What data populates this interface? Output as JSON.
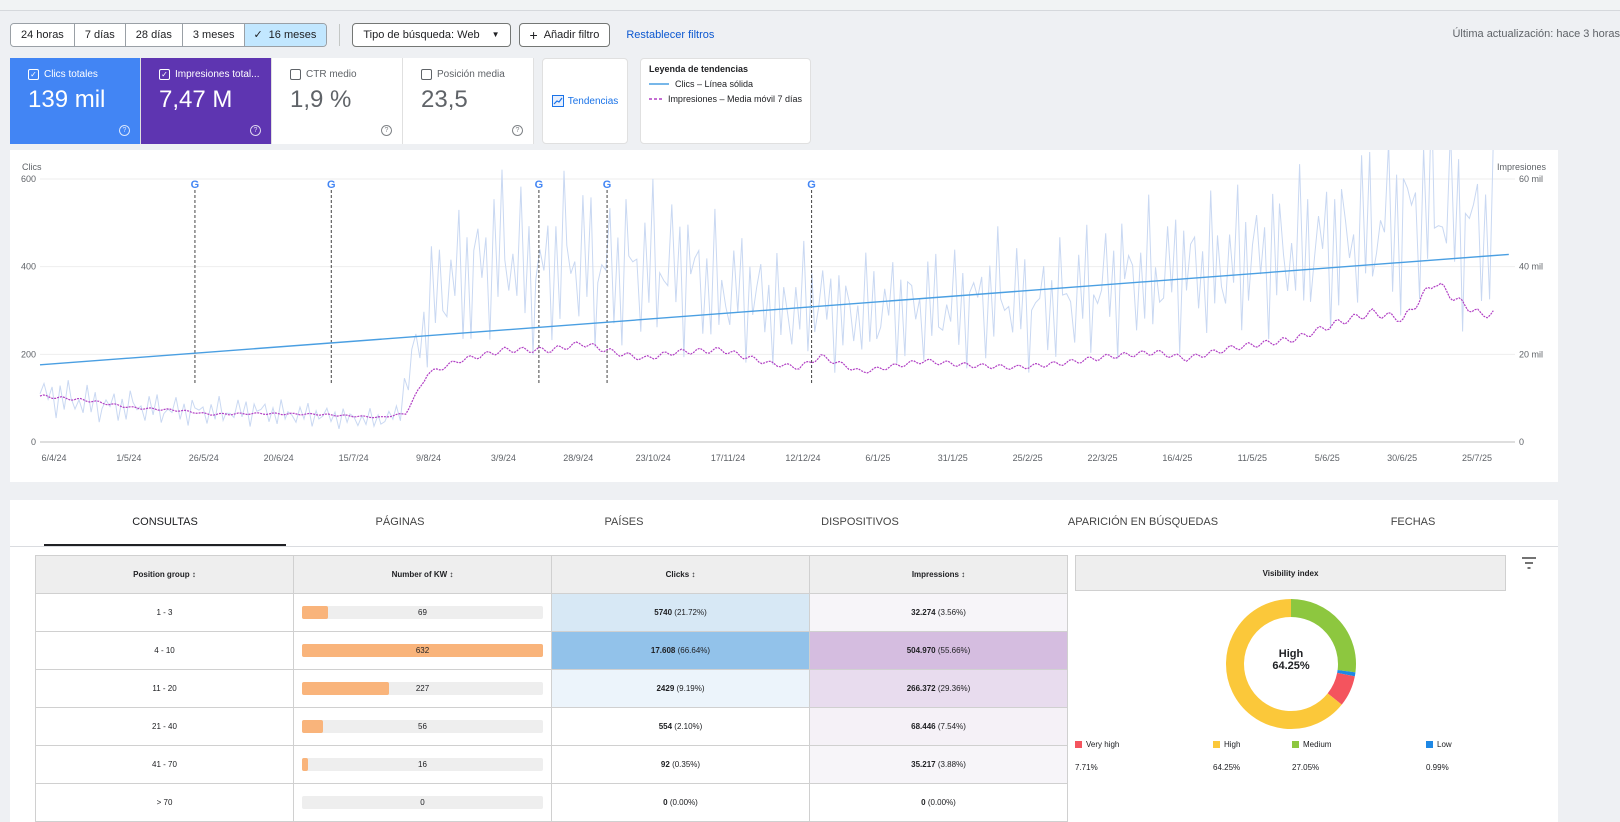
{
  "toolbar": {
    "ranges": [
      "24 horas",
      "7 días",
      "28 días",
      "3 meses",
      "16 meses"
    ],
    "selected_range": "16 meses",
    "check": "✓",
    "search_type": "Tipo de búsqueda: Web",
    "add_filter": "Añadir filtro",
    "reset": "Restablecer filtros",
    "updated": "Última actualización: hace 3 horas"
  },
  "metrics": [
    {
      "label": "Clics totales",
      "value": "139 mil",
      "checked": true,
      "color": "#4285f4"
    },
    {
      "label": "Impresiones total...",
      "value": "7,47 M",
      "checked": true,
      "color": "#5e35b1"
    },
    {
      "label": "CTR medio",
      "value": "1,9 %",
      "checked": false
    },
    {
      "label": "Posición media",
      "value": "23,5",
      "checked": false
    }
  ],
  "trends_label": "Tendencias",
  "legend": {
    "title": "Leyenda de tendencias",
    "clicks": "Clics – Línea sólida",
    "impressions": "Impresiones – Media móvil 7 días"
  },
  "chart_data": {
    "type": "line",
    "ylabel_left": "Clics",
    "ylabel_right": "Impresiones",
    "y_left_ticks": [
      "0",
      "200",
      "400",
      "600"
    ],
    "y_right_ticks": [
      "0",
      "20 mil",
      "40 mil",
      "60 mil"
    ],
    "ylim_left": [
      0,
      600
    ],
    "ylim_right": [
      0,
      60000
    ],
    "x_ticks": [
      "6/4/24",
      "1/5/24",
      "26/5/24",
      "20/6/24",
      "15/7/24",
      "9/8/24",
      "3/9/24",
      "28/9/24",
      "23/10/24",
      "17/11/24",
      "12/12/24",
      "6/1/25",
      "31/1/25",
      "25/2/25",
      "22/3/25",
      "16/4/25",
      "11/5/25",
      "5/6/25",
      "30/6/25",
      "25/7/25"
    ],
    "google_update_markers_days": [
      50,
      94,
      161,
      183,
      249
    ],
    "series": [
      {
        "name": "Clics – Línea sólida",
        "color": "#4a9fe2",
        "x_days": [
          0,
          474
        ],
        "values": [
          176,
          428
        ]
      },
      {
        "name": "Impresiones – Media móvil 7 días",
        "color": "#b13fc4",
        "x_days": [
          0,
          15,
          30,
          45,
          55,
          70,
          90,
          110,
          118,
          125,
          135,
          150,
          165,
          175,
          185,
          195,
          205,
          220,
          235,
          245,
          252,
          265,
          285,
          300,
          315,
          330,
          345,
          360,
          370,
          385,
          405,
          420,
          430,
          440,
          450,
          458,
          465,
          470
        ],
        "values": [
          10500,
          9500,
          7800,
          7200,
          6300,
          6500,
          6300,
          5600,
          6500,
          15500,
          18500,
          21000,
          21000,
          22500,
          20500,
          19000,
          20500,
          21000,
          18000,
          17000,
          19500,
          16000,
          18500,
          17500,
          17000,
          18000,
          19500,
          20500,
          19000,
          21500,
          23500,
          27500,
          29500,
          28000,
          36500,
          32000,
          29000,
          29500
        ]
      },
      {
        "name": "Clics (diario)",
        "color": "#c9d8f2",
        "x_days": [
          0,
          10,
          20,
          30,
          40,
          50,
          60,
          70,
          80,
          90,
          100,
          110,
          115,
          120,
          125,
          130,
          140,
          150,
          160,
          170,
          180,
          190,
          200,
          210,
          220,
          230,
          240,
          250,
          260,
          270,
          280,
          290,
          300,
          310,
          320,
          330,
          340,
          350,
          360,
          370,
          380,
          390,
          400,
          410,
          420,
          430,
          440,
          450,
          460,
          470
        ],
        "values": [
          110,
          95,
          85,
          80,
          75,
          70,
          70,
          70,
          65,
          60,
          55,
          50,
          60,
          180,
          300,
          350,
          400,
          430,
          380,
          420,
          400,
          390,
          410,
          380,
          350,
          330,
          300,
          320,
          290,
          300,
          310,
          300,
          320,
          330,
          310,
          320,
          350,
          370,
          380,
          390,
          400,
          420,
          430,
          440,
          460,
          480,
          520,
          540,
          500,
          480
        ]
      }
    ],
    "x_range_days": [
      0,
      476
    ]
  },
  "tabs": [
    "CONSULTAS",
    "PÁGINAS",
    "PAÍSES",
    "DISPOSITIVOS",
    "APARICIÓN EN BÚSQUEDAS",
    "FECHAS"
  ],
  "active_tab": "CONSULTAS",
  "table": {
    "headers": [
      "Position group ↕",
      "Number of KW ↕",
      "Clicks ↕",
      "Impressions ↕"
    ],
    "rows": [
      {
        "group": "1 - 3",
        "kw": "69",
        "kw_value": 69,
        "clicks": "5740",
        "clicks_pct": "(21.72%)",
        "impr": "32.274",
        "impr_pct": "(3.56%)",
        "clicks_bg": "#d7e8f5",
        "impr_bg": "#f7f5f9"
      },
      {
        "group": "4 - 10",
        "kw": "632",
        "kw_value": 632,
        "clicks": "17.608",
        "clicks_pct": "(66.64%)",
        "impr": "504.970",
        "impr_pct": "(55.66%)",
        "clicks_bg": "#92c2ea",
        "impr_bg": "#d5bde0"
      },
      {
        "group": "11 - 20",
        "kw": "227",
        "kw_value": 227,
        "clicks": "2429",
        "clicks_pct": "(9.19%)",
        "impr": "266.372",
        "impr_pct": "(29.36%)",
        "clicks_bg": "#ecf4fb",
        "impr_bg": "#e8dcee"
      },
      {
        "group": "21 - 40",
        "kw": "56",
        "kw_value": 56,
        "clicks": "554",
        "clicks_pct": "(2.10%)",
        "impr": "68.446",
        "impr_pct": "(7.54%)",
        "clicks_bg": "#ffffff",
        "impr_bg": "#f5f1f7"
      },
      {
        "group": "41 - 70",
        "kw": "16",
        "kw_value": 16,
        "clicks": "92",
        "clicks_pct": "(0.35%)",
        "impr": "35.217",
        "impr_pct": "(3.88%)",
        "clicks_bg": "#ffffff",
        "impr_bg": "#f7f5f9"
      },
      {
        "group": "> 70",
        "kw": "0",
        "kw_value": 0,
        "clicks": "0",
        "clicks_pct": "(0.00%)",
        "impr": "0",
        "impr_pct": "(0.00%)",
        "clicks_bg": "#ffffff",
        "impr_bg": "#ffffff"
      }
    ],
    "kw_max": 632
  },
  "visibility": {
    "title": "Visibility index",
    "center_label": "High",
    "center_value": "64.25%",
    "segments": [
      {
        "name": "Very high",
        "value": 7.71,
        "label": "7.71%",
        "color": "#f4545e"
      },
      {
        "name": "High",
        "value": 64.25,
        "label": "64.25%",
        "color": "#fbc83a"
      },
      {
        "name": "Medium",
        "value": 27.05,
        "label": "27.05%",
        "color": "#8dc73f"
      },
      {
        "name": "Low",
        "value": 0.99,
        "label": "0.99%",
        "color": "#1e88e5"
      }
    ]
  }
}
